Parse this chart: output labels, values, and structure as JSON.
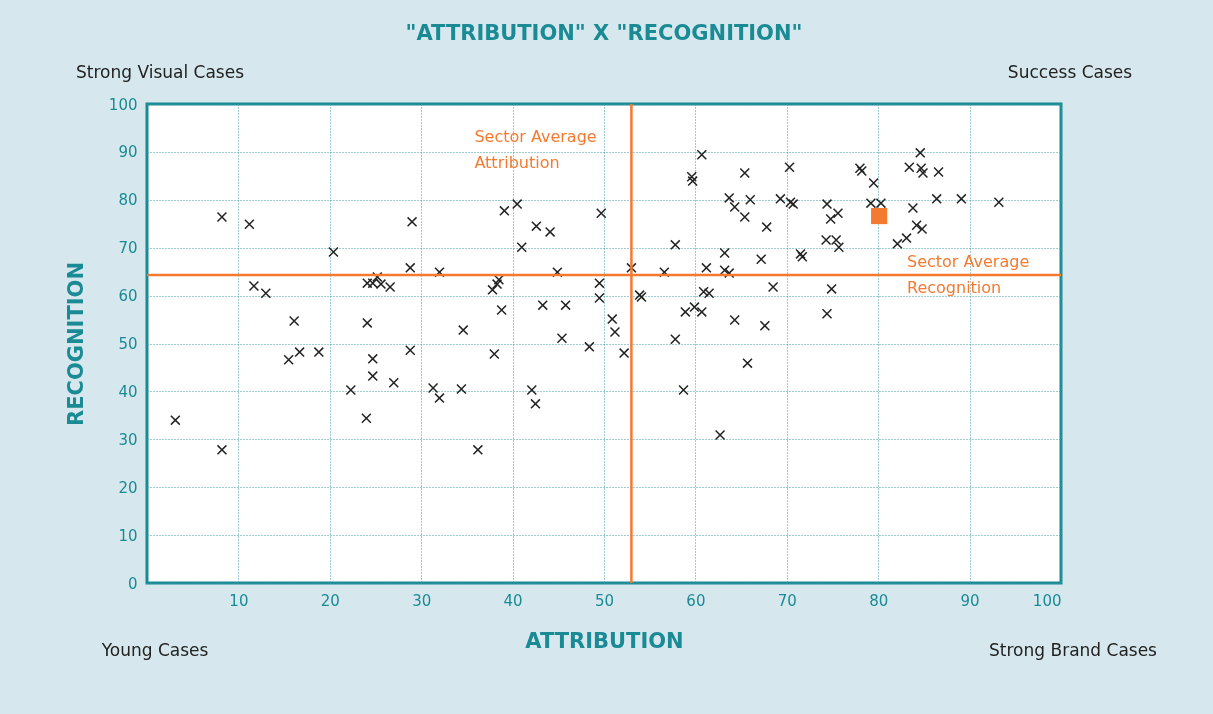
{
  "chart_data": {
    "type": "scatter",
    "title": "\"ATTRIBUTION\" X \"RECOGNITION\"",
    "xlabel": "ATTRIBUTION",
    "ylabel": "RECOGNITION",
    "xlim": [
      0,
      100
    ],
    "ylim": [
      0,
      100
    ],
    "xticks": [
      10,
      20,
      30,
      40,
      50,
      60,
      70,
      80,
      90,
      100
    ],
    "yticks": [
      0,
      10,
      20,
      30,
      40,
      50,
      60,
      70,
      80,
      90,
      100
    ],
    "grid": true,
    "annotations": [
      "Strong Visual Cases",
      "Success Cases",
      "Young Cases",
      "Strong Brand Cases"
    ],
    "ref_lines": [
      {
        "axis": "x",
        "value": 53,
        "label": "Sector Average\nAttribution",
        "color": "#f47a30"
      },
      {
        "axis": "y",
        "value": 64.3,
        "label": "Sector Average\nRecognition",
        "color": "#f47a30"
      }
    ],
    "series": [
      {
        "color": "#222222",
        "marker": "cross",
        "x": [
          3.1,
          8.2,
          8.2,
          11.2,
          11.7,
          13.0,
          16.1,
          15.5,
          16.7,
          18.8,
          20.4,
          22.3,
          24.0,
          24.1,
          24.1,
          24.7,
          25.2,
          25.6,
          26.6,
          24.7,
          24.7,
          27.0,
          28.8,
          28.8,
          29.0,
          31.3,
          32.0,
          32.0,
          34.6,
          34.4,
          36.2,
          37.8,
          38.3,
          38.5,
          38.0,
          38.8,
          39.1,
          40.5,
          41.0,
          42.6,
          44.1,
          43.3,
          44.9,
          45.4,
          45.8,
          42.1,
          42.5,
          48.4,
          49.5,
          49.5,
          49.7,
          50.9,
          51.2,
          52.2,
          53.0,
          53.9,
          54.1,
          56.6,
          57.8,
          57.8,
          58.7,
          58.9,
          59.9,
          60.7,
          60.9,
          61.5,
          61.2,
          59.6,
          59.7,
          60.7,
          62.7,
          63.2,
          63.7,
          64.3,
          65.4,
          64.3,
          65.4,
          65.7,
          63.2,
          63.7,
          66.0,
          67.8,
          67.2,
          68.5,
          67.6,
          70.3,
          69.3,
          70.4,
          70.7,
          71.5,
          71.7,
          74.4,
          74.8,
          75.6,
          74.3,
          75.4,
          75.7,
          74.9,
          74.4,
          78.0,
          78.2,
          79.5,
          79.2,
          80.3,
          82.1,
          83.1,
          83.4,
          84.6,
          84.7,
          84.9,
          86.6,
          83.8,
          84.2,
          84.8,
          86.4,
          89.1,
          93.2
        ],
        "values": [
          34.0,
          76.4,
          27.8,
          74.9,
          62.0,
          60.5,
          54.7,
          46.6,
          48.2,
          48.2,
          69.1,
          40.3,
          34.4,
          54.3,
          62.6,
          62.6,
          63.9,
          62.4,
          61.8,
          46.8,
          43.2,
          41.8,
          48.6,
          65.8,
          75.4,
          40.7,
          64.9,
          38.6,
          52.8,
          40.5,
          27.8,
          61.2,
          62.4,
          63.3,
          47.8,
          57.0,
          77.7,
          79.1,
          70.1,
          74.5,
          73.3,
          58.0,
          64.9,
          51.1,
          58.0,
          40.3,
          37.4,
          49.3,
          62.6,
          59.5,
          77.2,
          55.1,
          52.4,
          48.0,
          65.8,
          60.1,
          59.7,
          64.9,
          70.6,
          50.9,
          40.3,
          56.6,
          57.6,
          56.6,
          60.8,
          60.5,
          65.8,
          84.8,
          83.9,
          89.4,
          30.9,
          68.9,
          80.4,
          54.9,
          85.6,
          78.5,
          76.4,
          45.9,
          65.3,
          64.7,
          80.0,
          74.3,
          67.6,
          61.8,
          53.7,
          86.8,
          80.2,
          79.5,
          79.1,
          68.7,
          68.1,
          79.1,
          76.0,
          77.2,
          71.6,
          71.6,
          70.1,
          61.4,
          56.2,
          86.6,
          86.0,
          83.5,
          79.3,
          79.3,
          70.8,
          72.0,
          86.8,
          89.8,
          86.6,
          85.6,
          85.8,
          78.3,
          74.7,
          73.9,
          80.2,
          80.2,
          79.5
        ]
      },
      {
        "color": "#f47a30",
        "marker": "square",
        "x": [
          80.1
        ],
        "values": [
          76.6
        ]
      }
    ]
  }
}
